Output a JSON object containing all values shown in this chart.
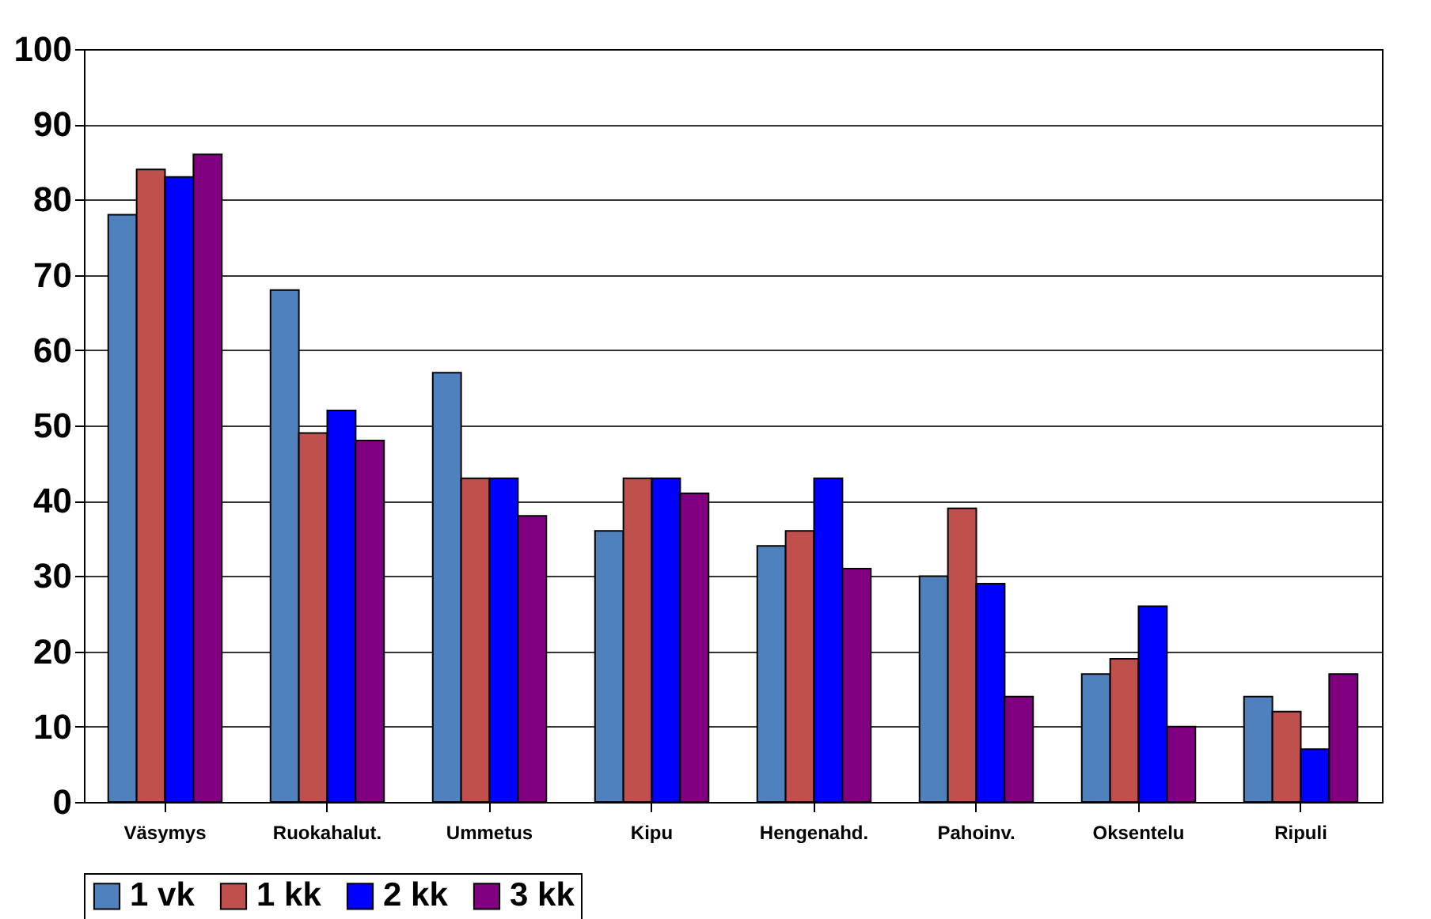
{
  "chart_data": {
    "type": "bar",
    "categories": [
      "Väsymys",
      "Ruokahalut.",
      "Ummetus",
      "Kipu",
      "Hengenahd.",
      "Pahoinv.",
      "Oksentelu",
      "Ripuli"
    ],
    "series": [
      {
        "name": "1 vk",
        "color": "#4f81bd",
        "values": [
          78,
          68,
          57,
          36,
          34,
          30,
          17,
          14
        ]
      },
      {
        "name": "1 kk",
        "color": "#c0504d",
        "values": [
          84,
          49,
          43,
          43,
          36,
          39,
          19,
          12
        ]
      },
      {
        "name": "2 kk",
        "color": "#0000ff",
        "values": [
          83,
          52,
          43,
          43,
          43,
          29,
          26,
          7
        ]
      },
      {
        "name": "3 kk",
        "color": "#800080",
        "values": [
          86,
          48,
          38,
          41,
          31,
          14,
          10,
          17
        ]
      }
    ],
    "ylim": [
      0,
      100
    ],
    "yticks": [
      0,
      10,
      20,
      30,
      40,
      50,
      60,
      70,
      80,
      90,
      100
    ],
    "grid": "y",
    "legend": "bottom"
  }
}
